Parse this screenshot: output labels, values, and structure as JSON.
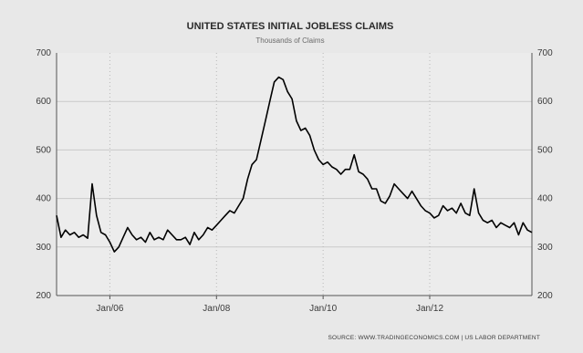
{
  "chart_data": {
    "type": "line",
    "title": "UNITED STATES INITIAL JOBLESS CLAIMS",
    "subtitle": "Thousands of Claims",
    "xlabel": "",
    "ylabel": "",
    "ylim": [
      200,
      700
    ],
    "yticks": [
      200,
      300,
      400,
      500,
      600,
      700
    ],
    "ytick_labels_left": [
      "200",
      "300",
      "400",
      "500",
      "600",
      "700"
    ],
    "ytick_labels_right": [
      "200",
      "300",
      "400",
      "500",
      "600",
      "700"
    ],
    "xlim": [
      "2005-01",
      "2013-12"
    ],
    "xtick_labels": [
      "Jan/06",
      "Jan/08",
      "Jan/10",
      "Jan/12"
    ],
    "xtick_dates": [
      "2006-01",
      "2008-01",
      "2010-01",
      "2012-01"
    ],
    "grid": true,
    "legend": "none",
    "line_color": "#000000",
    "source": "SOURCE: WWW.TRADINGECONOMICS.COM  |  US LABOR DEPARTMENT",
    "series": [
      {
        "x": [
          "2005-01",
          "2005-02",
          "2005-03",
          "2005-04",
          "2005-05",
          "2005-06",
          "2005-07",
          "2005-08",
          "2005-09",
          "2005-10",
          "2005-11",
          "2005-12",
          "2006-01",
          "2006-02",
          "2006-03",
          "2006-04",
          "2006-05",
          "2006-06",
          "2006-07",
          "2006-08",
          "2006-09",
          "2006-10",
          "2006-11",
          "2006-12",
          "2007-01",
          "2007-02",
          "2007-03",
          "2007-04",
          "2007-05",
          "2007-06",
          "2007-07",
          "2007-08",
          "2007-09",
          "2007-10",
          "2007-11",
          "2007-12",
          "2008-01",
          "2008-02",
          "2008-03",
          "2008-04",
          "2008-05",
          "2008-06",
          "2008-07",
          "2008-08",
          "2008-09",
          "2008-10",
          "2008-11",
          "2008-12",
          "2009-01",
          "2009-02",
          "2009-03",
          "2009-04",
          "2009-05",
          "2009-06",
          "2009-07",
          "2009-08",
          "2009-09",
          "2009-10",
          "2009-11",
          "2009-12",
          "2010-01",
          "2010-02",
          "2010-03",
          "2010-04",
          "2010-05",
          "2010-06",
          "2010-07",
          "2010-08",
          "2010-09",
          "2010-10",
          "2010-11",
          "2010-12",
          "2011-01",
          "2011-02",
          "2011-03",
          "2011-04",
          "2011-05",
          "2011-06",
          "2011-07",
          "2011-08",
          "2011-09",
          "2011-10",
          "2011-11",
          "2011-12",
          "2012-01",
          "2012-02",
          "2012-03",
          "2012-04",
          "2012-05",
          "2012-06",
          "2012-07",
          "2012-08",
          "2012-09",
          "2012-10",
          "2012-11",
          "2012-12",
          "2013-01",
          "2013-02",
          "2013-03",
          "2013-04",
          "2013-05",
          "2013-06",
          "2013-07",
          "2013-08",
          "2013-09",
          "2013-10",
          "2013-11",
          "2013-12"
        ],
        "values": [
          365,
          320,
          335,
          325,
          330,
          320,
          325,
          318,
          430,
          365,
          330,
          325,
          310,
          290,
          300,
          320,
          340,
          325,
          315,
          320,
          310,
          330,
          315,
          320,
          315,
          335,
          325,
          315,
          315,
          320,
          305,
          330,
          315,
          325,
          340,
          335,
          345,
          355,
          365,
          375,
          370,
          385,
          400,
          440,
          470,
          480,
          520,
          560,
          600,
          640,
          650,
          645,
          620,
          605,
          560,
          540,
          545,
          530,
          500,
          480,
          470,
          475,
          465,
          460,
          450,
          460,
          460,
          490,
          455,
          450,
          440,
          420,
          420,
          395,
          390,
          405,
          430,
          420,
          410,
          400,
          415,
          400,
          385,
          375,
          370,
          360,
          365,
          385,
          375,
          380,
          370,
          390,
          370,
          365,
          420,
          370,
          355,
          350,
          355,
          340,
          350,
          345,
          340,
          350,
          325,
          350,
          335,
          330
        ]
      }
    ]
  }
}
